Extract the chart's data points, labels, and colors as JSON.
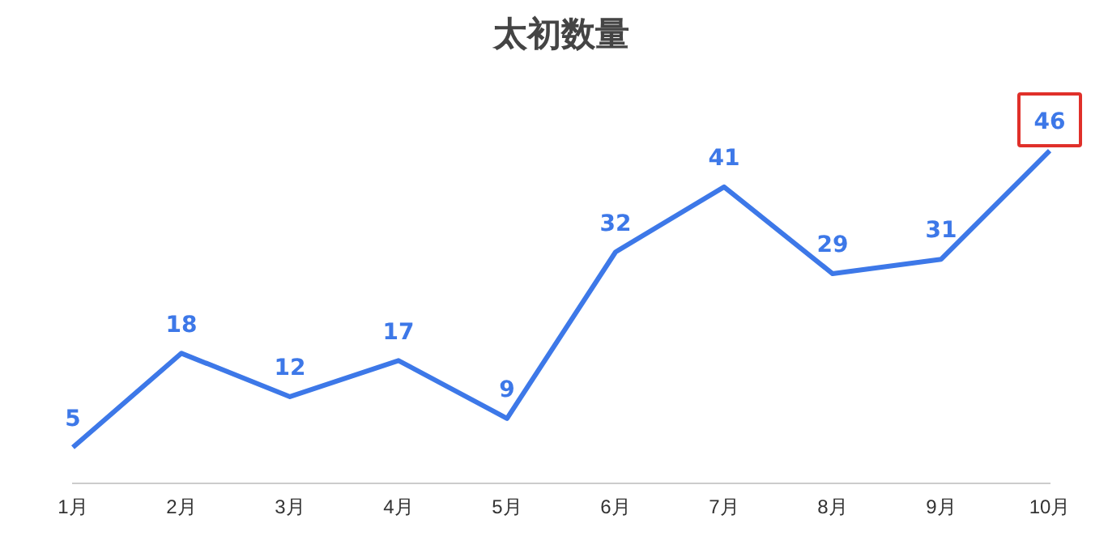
{
  "chart_data": {
    "type": "line",
    "title": "太初数量",
    "categories": [
      "1月",
      "2月",
      "3月",
      "4月",
      "5月",
      "6月",
      "7月",
      "8月",
      "9月",
      "10月"
    ],
    "series": [
      {
        "color": "#3d78e8",
        "values": [
          5,
          18,
          12,
          17,
          9,
          32,
          41,
          29,
          31,
          46
        ]
      }
    ],
    "data_labels": true,
    "grid": false,
    "legend": false,
    "marker": "none",
    "line_style": "solid"
  }
}
